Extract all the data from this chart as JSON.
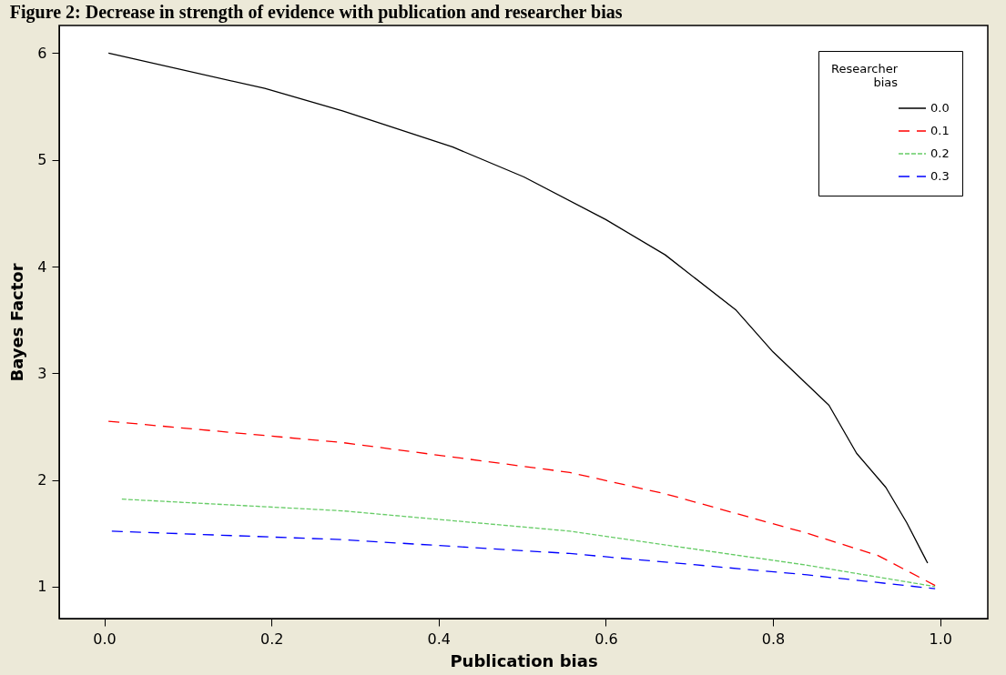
{
  "chart_data": {
    "type": "line",
    "title": "Figure 2: Decrease in strength of evidence with publication and researcher bias",
    "xlabel": "Publication bias",
    "ylabel": "Bayes Factor",
    "legend_title": "Researcher bias",
    "xlim": [
      -0.054,
      1.057
    ],
    "ylim": [
      0.7,
      6.26
    ],
    "xticks": [
      {
        "value": 0,
        "label": "0.0"
      },
      0.2,
      0.4,
      0.6,
      0.8,
      {
        "value": 1,
        "label": "1.0"
      }
    ],
    "yticks": [
      1,
      2,
      3,
      4,
      5,
      6
    ],
    "grid": false,
    "legend": "top right",
    "marker": "none",
    "series": [
      {
        "name": "0.0",
        "color": "#000000",
        "line_style": "solid",
        "x": [
          0.005,
          0.192,
          0.285,
          0.417,
          0.502,
          0.6,
          0.671,
          0.756,
          0.8,
          0.867,
          0.9,
          0.935,
          0.96,
          0.985
        ],
        "values": [
          6.0,
          5.67,
          5.46,
          5.12,
          4.84,
          4.44,
          4.11,
          3.59,
          3.2,
          2.7,
          2.25,
          1.93,
          1.6,
          1.22
        ]
      },
      {
        "name": "0.1",
        "color": "#ff0000",
        "line_style": "dashed",
        "x": [
          0.005,
          0.285,
          0.557,
          0.671,
          0.841,
          0.926,
          0.994
        ],
        "values": [
          2.55,
          2.35,
          2.07,
          1.87,
          1.5,
          1.29,
          1.01
        ]
      },
      {
        "name": "0.2",
        "color": "#66cc66",
        "line_style": "dotted",
        "x": [
          0.021,
          0.285,
          0.557,
          0.841,
          0.994
        ],
        "values": [
          1.82,
          1.71,
          1.52,
          1.2,
          1.0
        ]
      },
      {
        "name": "0.3",
        "color": "#0000ff",
        "line_style": "dashed",
        "x": [
          0.009,
          0.285,
          0.557,
          0.841,
          0.994
        ],
        "values": [
          1.52,
          1.44,
          1.31,
          1.11,
          0.98
        ]
      }
    ]
  }
}
